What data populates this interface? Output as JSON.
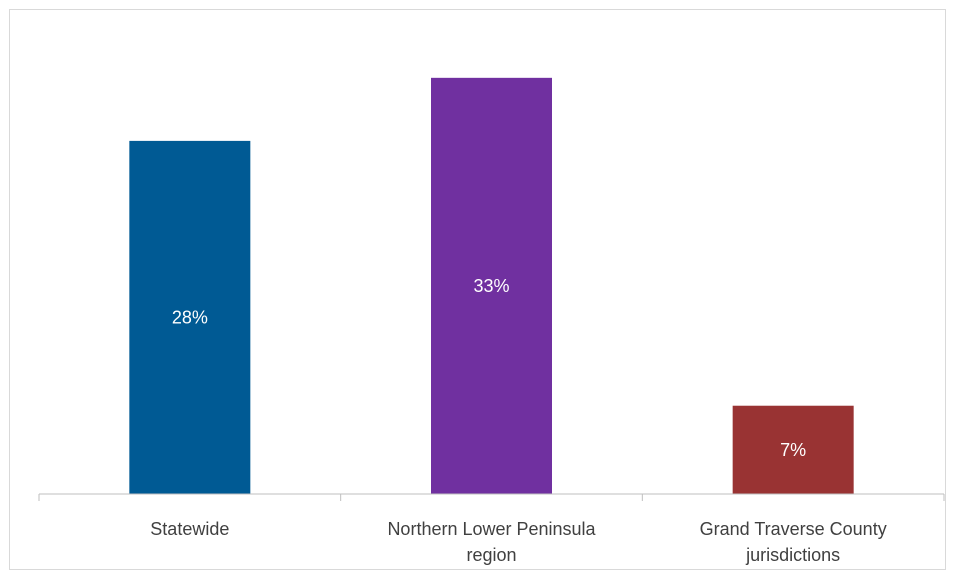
{
  "chart_data": {
    "type": "bar",
    "categories": [
      [
        "Statewide"
      ],
      [
        "Northern Lower Peninsula",
        "region"
      ],
      [
        "Grand Traverse County",
        "jurisdictions"
      ]
    ],
    "values": [
      28,
      33,
      7
    ],
    "value_labels": [
      "28%",
      "33%",
      "7%"
    ],
    "colors": [
      "#005a94",
      "#7030a0",
      "#993333"
    ],
    "title": "",
    "xlabel": "",
    "ylabel": "",
    "ylim": [
      0,
      36
    ],
    "grid": false,
    "legend": "none"
  }
}
